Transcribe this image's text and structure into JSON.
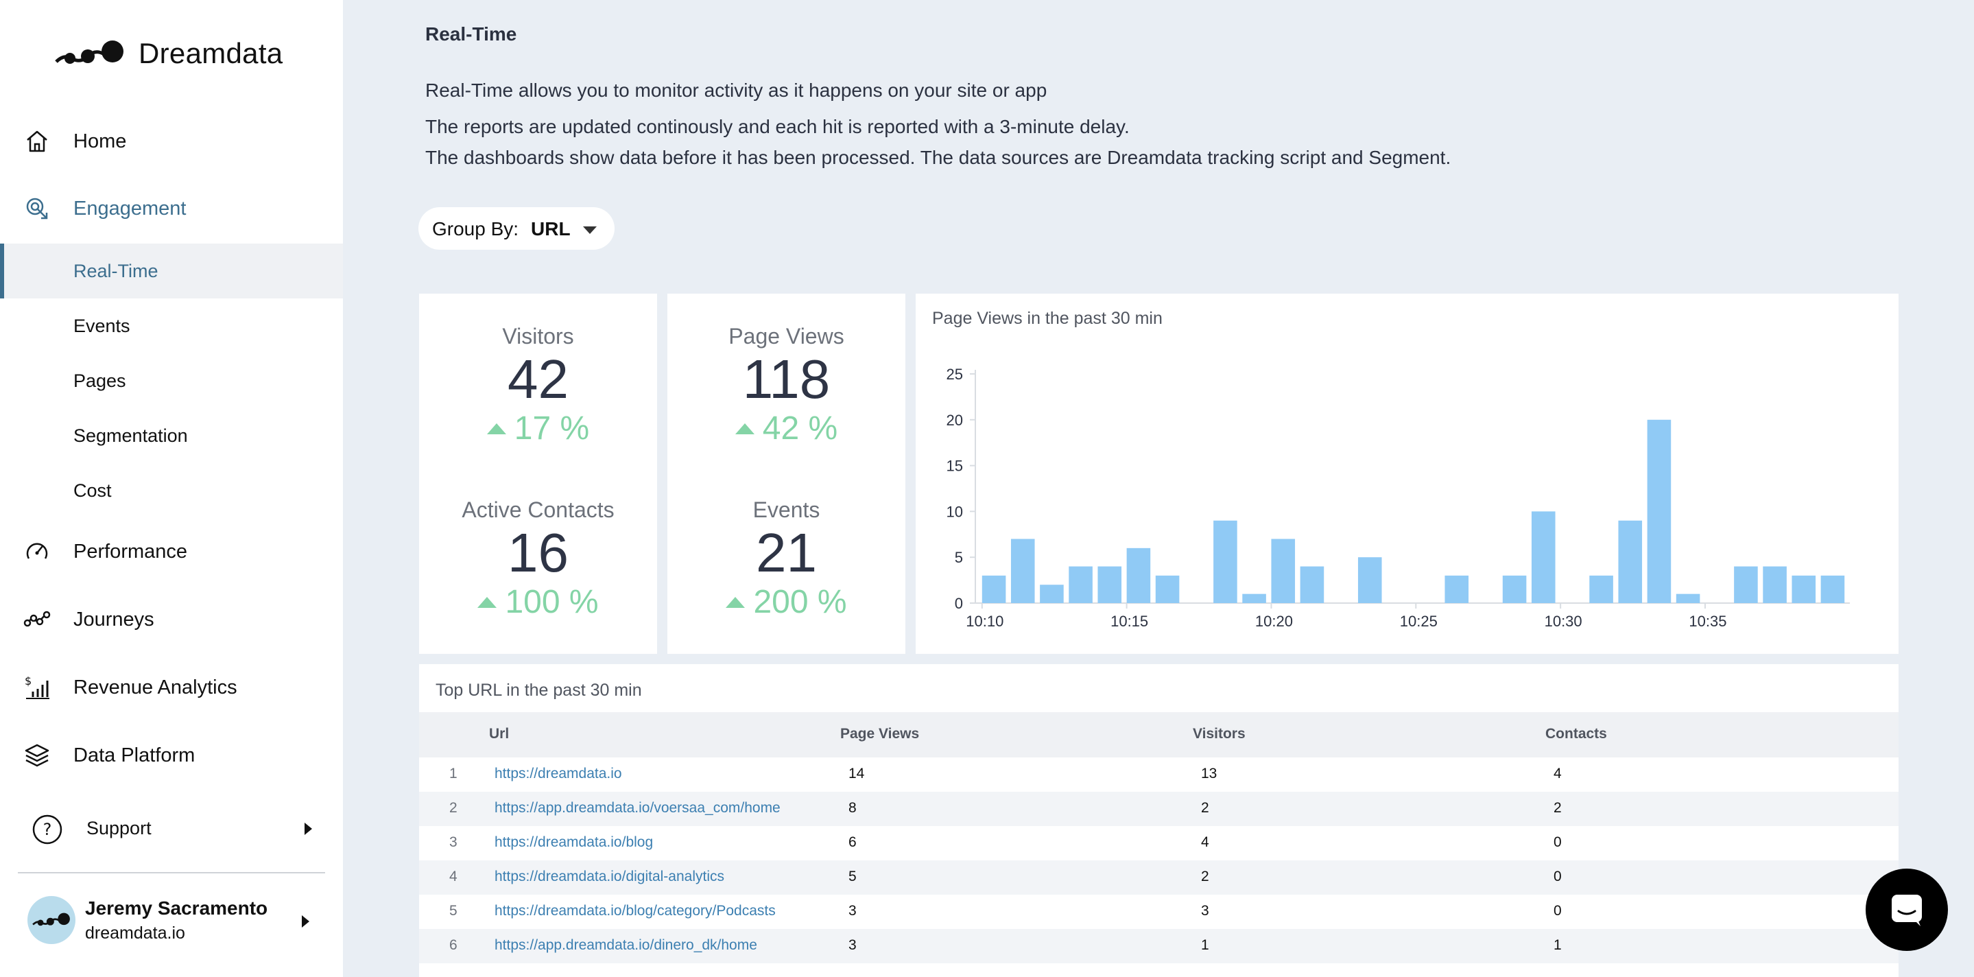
{
  "sidebar": {
    "brand": "Dreamdata",
    "nav": {
      "home": "Home",
      "engagement": "Engagement",
      "sub": [
        "Real-Time",
        "Events",
        "Pages",
        "Segmentation",
        "Cost"
      ],
      "performance": "Performance",
      "journeys": "Journeys",
      "revenue": "Revenue Analytics",
      "data_platform": "Data Platform",
      "support": "Support"
    },
    "user": {
      "name": "Jeremy Sacramento",
      "org": "dreamdata.io"
    }
  },
  "main": {
    "title": "Real-Time",
    "desc": [
      "Real-Time allows you to monitor activity as it happens on your site or app",
      "The reports are updated continously and each hit is reported with a 3-minute delay.",
      "The dashboards show data before it has been processed. The data sources are Dreamdata tracking script and Segment."
    ],
    "group_by": {
      "label": "Group By:",
      "value": "URL"
    }
  },
  "kpis": {
    "visitors": {
      "label": "Visitors",
      "value": "42",
      "delta": "17 %"
    },
    "page_views": {
      "label": "Page Views",
      "value": "118",
      "delta": "42 %"
    },
    "active_contacts": {
      "label": "Active Contacts",
      "value": "16",
      "delta": "100 %"
    },
    "events": {
      "label": "Events",
      "value": "21",
      "delta": "200 %"
    }
  },
  "chart_data": {
    "type": "bar",
    "title": "Page Views in the past 30 min",
    "xlabel": "",
    "ylabel": "",
    "ylim": [
      0,
      25
    ],
    "yticks": [
      0,
      5,
      10,
      15,
      20,
      25
    ],
    "x_tick_labels": [
      "10:10",
      "10:15",
      "10:20",
      "10:25",
      "10:30",
      "10:35"
    ],
    "categories": [
      "10:10",
      "10:11",
      "10:12",
      "10:13",
      "10:14",
      "10:15",
      "10:16",
      "10:17",
      "10:18",
      "10:19",
      "10:20",
      "10:21",
      "10:22",
      "10:23",
      "10:24",
      "10:25",
      "10:26",
      "10:27",
      "10:28",
      "10:29",
      "10:30",
      "10:31",
      "10:32",
      "10:33",
      "10:34",
      "10:35",
      "10:36",
      "10:37",
      "10:38",
      "10:39"
    ],
    "values": [
      3,
      7,
      2,
      4,
      4,
      6,
      3,
      0,
      9,
      1,
      7,
      4,
      0,
      5,
      0,
      0,
      3,
      0,
      3,
      10,
      0,
      3,
      9,
      20,
      1,
      0,
      4,
      4,
      3,
      3
    ],
    "color": "#90caf5"
  },
  "table": {
    "title": "Top URL in the past 30 min",
    "headers": {
      "url": "Url",
      "page_views": "Page Views",
      "visitors": "Visitors",
      "contacts": "Contacts"
    },
    "rows": [
      {
        "idx": "1",
        "url": "https://dreamdata.io",
        "page_views": "14",
        "visitors": "13",
        "contacts": "4"
      },
      {
        "idx": "2",
        "url": "https://app.dreamdata.io/voersaa_com/home",
        "page_views": "8",
        "visitors": "2",
        "contacts": "2"
      },
      {
        "idx": "3",
        "url": "https://dreamdata.io/blog",
        "page_views": "6",
        "visitors": "4",
        "contacts": "0"
      },
      {
        "idx": "4",
        "url": "https://dreamdata.io/digital-analytics",
        "page_views": "5",
        "visitors": "2",
        "contacts": "0"
      },
      {
        "idx": "5",
        "url": "https://dreamdata.io/blog/category/Podcasts",
        "page_views": "3",
        "visitors": "3",
        "contacts": "0"
      },
      {
        "idx": "6",
        "url": "https://app.dreamdata.io/dinero_dk/home",
        "page_views": "3",
        "visitors": "1",
        "contacts": "1"
      }
    ]
  },
  "colors": {
    "accent": "#3c6e8e",
    "positive": "#84d4a6",
    "bar": "#90caf5",
    "link": "#3c7fb1"
  }
}
